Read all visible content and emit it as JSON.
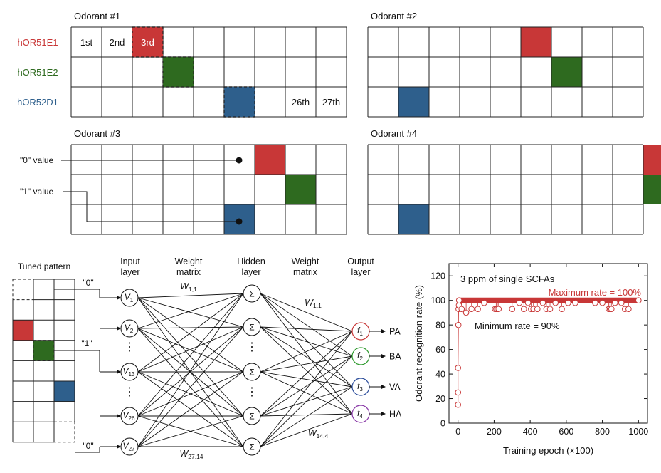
{
  "colors": {
    "red": "#c83737",
    "green": "#2e6a1f",
    "blue": "#2e5f8c",
    "grid": "#222222"
  },
  "receptors": [
    {
      "name": "hOR51E1",
      "color": "#c83737"
    },
    {
      "name": "hOR51E2",
      "color": "#2e6a1f"
    },
    {
      "name": "hOR52D1",
      "color": "#2e5f8c"
    }
  ],
  "odorants": [
    {
      "title": "Odorant #1",
      "active": [
        2,
        3,
        5
      ]
    },
    {
      "title": "Odorant #2",
      "active": [
        5,
        6,
        1
      ]
    },
    {
      "title": "Odorant #3",
      "active": [
        6,
        7,
        5
      ]
    },
    {
      "title": "Odorant #4",
      "active": [
        9,
        9,
        1
      ]
    }
  ],
  "cell_labels": {
    "first": "1st",
    "second": "2nd",
    "third": "3rd",
    "c26": "26th",
    "c27": "27th"
  },
  "value_labels": {
    "zero": "\"0\" value",
    "one": "\"1\" value"
  },
  "network": {
    "tuned_pattern": "Tuned pattern",
    "tuned_zero": "\"0\"",
    "tuned_one": "\"1\"",
    "input_layer": [
      "Input",
      "layer"
    ],
    "weight_matrix": [
      "Weight",
      "matrix"
    ],
    "hidden_layer": [
      "Hidden",
      "layer"
    ],
    "output_layer": [
      "Output",
      "layer"
    ],
    "inputs": [
      {
        "base": "V",
        "sub": "1"
      },
      {
        "base": "V",
        "sub": "2"
      },
      {
        "base": "V",
        "sub": "13"
      },
      {
        "base": "V",
        "sub": "26"
      },
      {
        "base": "V",
        "sub": "27"
      }
    ],
    "hidden_symbol": "Σ",
    "outputs": [
      {
        "base": "f",
        "sub": "1",
        "label": "PA",
        "color": "#c83737"
      },
      {
        "base": "f",
        "sub": "2",
        "label": "BA",
        "color": "#2e9a2e"
      },
      {
        "base": "f",
        "sub": "3",
        "label": "VA",
        "color": "#2e4f9c"
      },
      {
        "base": "f",
        "sub": "4",
        "label": "HA",
        "color": "#8a3aa8"
      }
    ],
    "weights": {
      "w11_left": {
        "base": "W",
        "sub": "1,1"
      },
      "w2714": {
        "base": "W",
        "sub": "27,14"
      },
      "w11_right": {
        "base": "W",
        "sub": "1,1"
      },
      "w144": {
        "base": "W",
        "sub": "14,4"
      }
    },
    "dots": "⋮"
  },
  "chart_data": {
    "type": "scatter",
    "xlabel": "Training epoch (×100)",
    "ylabel": "Odorant recognition rate (%)",
    "xlim": [
      -50,
      1050
    ],
    "ylim": [
      0,
      130
    ],
    "xticks": [
      0,
      200,
      400,
      600,
      800,
      1000
    ],
    "yticks": [
      0,
      20,
      40,
      60,
      80,
      100,
      120
    ],
    "annotations": {
      "condition": "3 ppm of single SCFAs",
      "max": "Maximum rate = 100%",
      "min": "Minimum rate = 90%"
    },
    "series_color": "#c83737",
    "early_points": [
      {
        "x": 0,
        "y": 15
      },
      {
        "x": 0,
        "y": 25
      },
      {
        "x": 0,
        "y": 45
      },
      {
        "x": 2,
        "y": 80
      },
      {
        "x": 3,
        "y": 93
      },
      {
        "x": 5,
        "y": 96
      },
      {
        "x": 6,
        "y": 100
      }
    ],
    "dip_points": [
      {
        "x": 20,
        "y": 93
      },
      {
        "x": 45,
        "y": 90
      },
      {
        "x": 75,
        "y": 93
      },
      {
        "x": 110,
        "y": 93
      },
      {
        "x": 145,
        "y": 98
      },
      {
        "x": 205,
        "y": 93
      },
      {
        "x": 212,
        "y": 93
      },
      {
        "x": 218,
        "y": 93
      },
      {
        "x": 225,
        "y": 93
      },
      {
        "x": 300,
        "y": 93
      },
      {
        "x": 340,
        "y": 98
      },
      {
        "x": 365,
        "y": 93
      },
      {
        "x": 388,
        "y": 98
      },
      {
        "x": 405,
        "y": 93
      },
      {
        "x": 418,
        "y": 93
      },
      {
        "x": 440,
        "y": 93
      },
      {
        "x": 470,
        "y": 98
      },
      {
        "x": 490,
        "y": 93
      },
      {
        "x": 510,
        "y": 93
      },
      {
        "x": 540,
        "y": 98
      },
      {
        "x": 575,
        "y": 93
      },
      {
        "x": 610,
        "y": 98
      },
      {
        "x": 650,
        "y": 98
      },
      {
        "x": 760,
        "y": 98
      },
      {
        "x": 800,
        "y": 98
      },
      {
        "x": 835,
        "y": 93
      },
      {
        "x": 842,
        "y": 93
      },
      {
        "x": 850,
        "y": 93
      },
      {
        "x": 870,
        "y": 98
      },
      {
        "x": 905,
        "y": 98
      },
      {
        "x": 925,
        "y": 93
      },
      {
        "x": 945,
        "y": 93
      }
    ],
    "max_band": {
      "x_start": 6,
      "x_end": 1000,
      "y": 100
    }
  }
}
